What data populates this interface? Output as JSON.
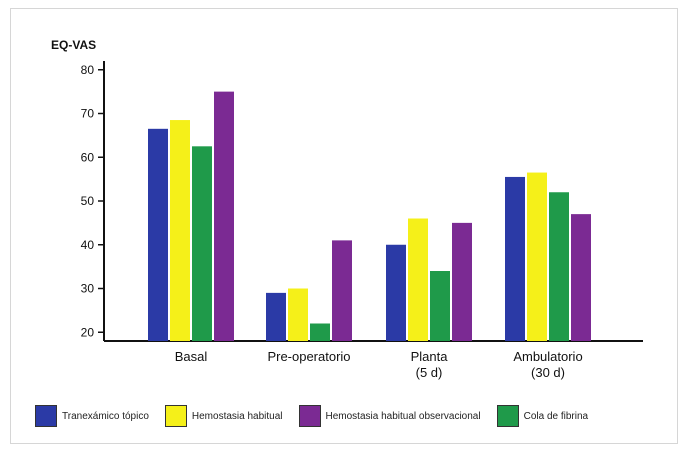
{
  "chart_data": {
    "type": "bar",
    "ylabel": "EQ-VAS",
    "ylim": [
      18,
      82
    ],
    "yticks": [
      20,
      30,
      40,
      50,
      60,
      70,
      80
    ],
    "categories": [
      [
        "Basal"
      ],
      [
        "Pre-operatorio"
      ],
      [
        "Planta",
        "(5 d)"
      ],
      [
        "Ambulatorio",
        "(30 d)"
      ]
    ],
    "series": [
      {
        "name": "Tranexámico tópico",
        "color": "#2b3aa6",
        "values": [
          66.5,
          29,
          40,
          55.5
        ]
      },
      {
        "name": "Hemostasia habitual",
        "color": "#f5f019",
        "values": [
          68.5,
          30,
          46,
          56.5
        ]
      },
      {
        "name": "Cola de fibrina",
        "color": "#1f9a4a",
        "values": [
          62.5,
          22,
          34,
          52
        ]
      },
      {
        "name": "Hemostasia habitual observacional",
        "color": "#7b2a93",
        "values": [
          75,
          41,
          45,
          47
        ]
      }
    ],
    "legend_order": [
      0,
      1,
      3,
      2
    ],
    "legend_position": "bottom",
    "grid": false
  }
}
